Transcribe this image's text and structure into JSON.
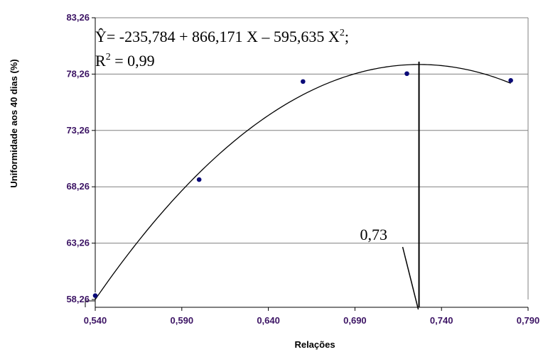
{
  "chart_data": {
    "type": "scatter",
    "xlabel": "Relações",
    "ylabel": "Uniformidade aos 40 dias (%)",
    "xlim": [
      0.54,
      0.79
    ],
    "ylim": [
      58.26,
      83.26
    ],
    "x_ticks": [
      "0,540",
      "0,590",
      "0,640",
      "0,690",
      "0,740",
      "0,790"
    ],
    "x_tick_values": [
      0.54,
      0.59,
      0.64,
      0.69,
      0.74,
      0.79
    ],
    "y_ticks": [
      "58,26",
      "63,26",
      "68,26",
      "73,26",
      "78,26",
      "83,26"
    ],
    "y_tick_values": [
      58.26,
      63.26,
      68.26,
      73.26,
      78.26,
      83.26
    ],
    "grid": "horizontal",
    "points": {
      "x": [
        0.54,
        0.6,
        0.66,
        0.72,
        0.78
      ],
      "y": [
        58.6,
        68.9,
        77.6,
        78.3,
        77.7
      ]
    },
    "fit": {
      "a": -235.784,
      "b": 866.171,
      "c": -595.635,
      "x_range": [
        0.54,
        0.78
      ]
    },
    "equation_line1": "Ŷ= -235,784 + 866,171 X – 595,635 X",
    "equation_sup": "2",
    "equation_end": ";",
    "r2_prefix": "R",
    "r2_sup": "2",
    "r2_value": " = 0,99",
    "optimum": {
      "x": 0.727,
      "label": "0,73"
    },
    "colors": {
      "tick_text": "#3c1464",
      "grid": "#808080",
      "points": "#0a0a78",
      "curve": "#000000"
    }
  }
}
